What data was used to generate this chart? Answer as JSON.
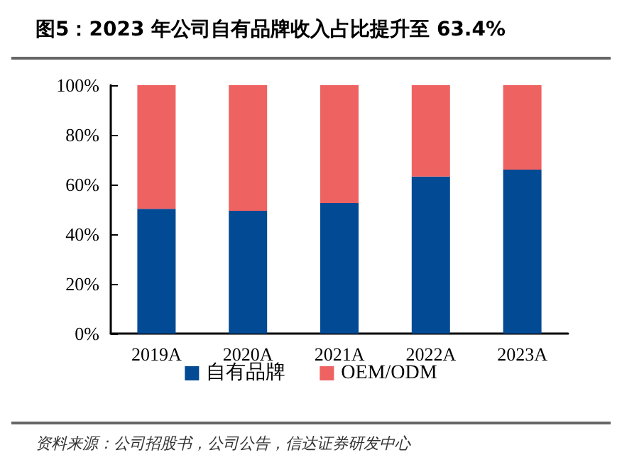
{
  "chart_data": {
    "type": "bar",
    "title": "图5：2023 年公司自有品牌收入占比提升至 63.4%",
    "categories": [
      "2019A",
      "2020A",
      "2021A",
      "2022A",
      "2023A"
    ],
    "stacked": true,
    "series": [
      {
        "name": "自有品牌",
        "color": "#024a93",
        "values": [
          50.2,
          49.4,
          52.6,
          63.2,
          66.0
        ]
      },
      {
        "name": "OEM/ODM",
        "color": "#ef6262",
        "values": [
          49.8,
          50.6,
          47.4,
          36.8,
          34.0
        ]
      }
    ],
    "ylim": [
      0,
      100
    ],
    "yticks": [
      {
        "value": 0,
        "label": "0%"
      },
      {
        "value": 20,
        "label": "20%"
      },
      {
        "value": 40,
        "label": "40%"
      },
      {
        "value": 60,
        "label": "60%"
      },
      {
        "value": 80,
        "label": "80%"
      },
      {
        "value": 100,
        "label": "100%"
      }
    ],
    "grid": false,
    "legend": "bottom",
    "annotations": [
      "资料来源：公司招股书，公司公告，信达证券研发中心"
    ]
  }
}
